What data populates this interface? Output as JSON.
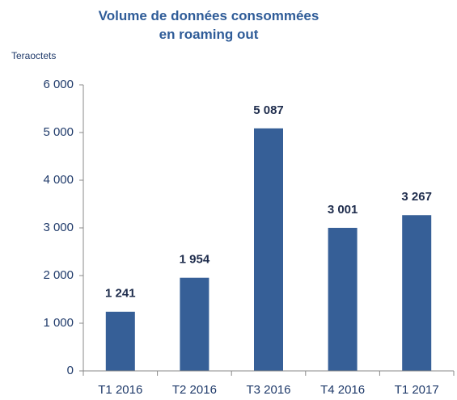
{
  "chart_data": {
    "type": "bar",
    "title": "Volume de données consommées en roaming out",
    "y_label": "Teraoctets",
    "categories": [
      "T1 2016",
      "T2 2016",
      "T3 2016",
      "T4 2016",
      "T1 2017"
    ],
    "values": [
      1241,
      1954,
      5087,
      3001,
      3267
    ],
    "value_labels": [
      "1 241",
      "1 954",
      "5 087",
      "3 001",
      "3 267"
    ],
    "color": "#365f97",
    "ylim": [
      0,
      6000
    ],
    "yticks": [
      0,
      {
        "value": 1000,
        "label": "1 000"
      },
      {
        "value": 2000,
        "label": "2 000"
      },
      {
        "value": 3000,
        "label": "3 000"
      },
      {
        "value": 4000,
        "label": "4 000"
      },
      {
        "value": 5000,
        "label": "5 000"
      },
      {
        "value": 6000,
        "label": "6 000"
      }
    ],
    "grid": false
  }
}
